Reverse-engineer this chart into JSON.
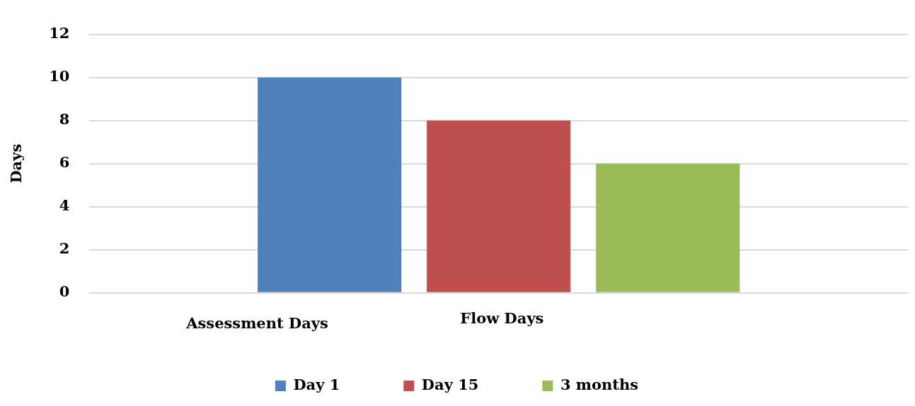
{
  "chart_data": {
    "type": "bar",
    "ylabel": "Days",
    "categories": [
      null
    ],
    "series": [
      {
        "name": "Day 1",
        "color": "#4f81bd",
        "values": [
          10
        ]
      },
      {
        "name": "Day 15",
        "color": "#c0504d",
        "values": [
          8
        ]
      },
      {
        "name": "3 months",
        "color": "#9bbb59",
        "values": [
          6
        ]
      }
    ],
    "ylim": [
      0,
      12
    ],
    "yticks": [
      0,
      2,
      4,
      6,
      8,
      10,
      12
    ],
    "grid": "y",
    "legend": "bottom",
    "annotations": [
      "Assessment Days",
      "Flow Days"
    ]
  }
}
